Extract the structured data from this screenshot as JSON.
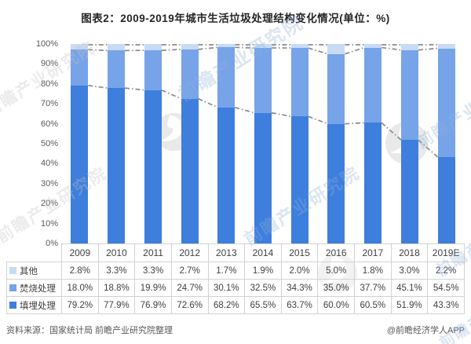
{
  "title": "图表2：2009-2019年城市生活垃圾处理结构变化情况(单位：%)",
  "footer": {
    "source": "资料来源：国家统计局 前瞻产业研究院整理",
    "brand": "@前瞻经济学人APP"
  },
  "watermark": {
    "text": "前瞻产业研究院",
    "logo": "qianzhan-phoenix-logo"
  },
  "colors": {
    "other": "#C7DBF5",
    "incineration": "#77A3E9",
    "landfill": "#3E7EDC",
    "connector_line": "#8A8A8A",
    "table_border": "#D2D2D2",
    "axis_text": "#595959",
    "title_text": "#262626"
  },
  "chart_data": {
    "type": "bar",
    "stacked": true,
    "title": "图表2：2009-2019年城市生活垃圾处理结构变化情况(单位：%)",
    "xlabel": "",
    "ylabel": "",
    "ylim": [
      0,
      100
    ],
    "grid": false,
    "legend_position": "left-table",
    "categories": [
      "2009",
      "2010",
      "2011",
      "2012",
      "2013",
      "2014",
      "2015",
      "2016",
      "2017",
      "2018",
      "2019E"
    ],
    "yticks": [
      "0%",
      "10%",
      "20%",
      "30%",
      "40%",
      "50%",
      "60%",
      "70%",
      "80%",
      "90%",
      "100%"
    ],
    "series": [
      {
        "name": "其他",
        "key": "other",
        "values": [
          2.8,
          3.3,
          3.3,
          2.7,
          1.7,
          1.9,
          2.0,
          5.0,
          1.8,
          3.0,
          2.2
        ]
      },
      {
        "name": "焚烧处理",
        "key": "incineration",
        "values": [
          18.0,
          18.8,
          19.9,
          24.7,
          30.1,
          32.5,
          34.3,
          35.0,
          37.7,
          45.1,
          54.5
        ]
      },
      {
        "name": "填埋处理",
        "key": "landfill",
        "values": [
          79.2,
          77.9,
          76.9,
          72.6,
          68.2,
          65.5,
          63.7,
          60.0,
          60.5,
          51.9,
          43.3
        ]
      }
    ],
    "overlay": {
      "type": "series-connector-lines",
      "style": "gray dash-dot lines linking cumulative stack boundaries between adjacent bars"
    },
    "value_format": "one decimal + %"
  }
}
